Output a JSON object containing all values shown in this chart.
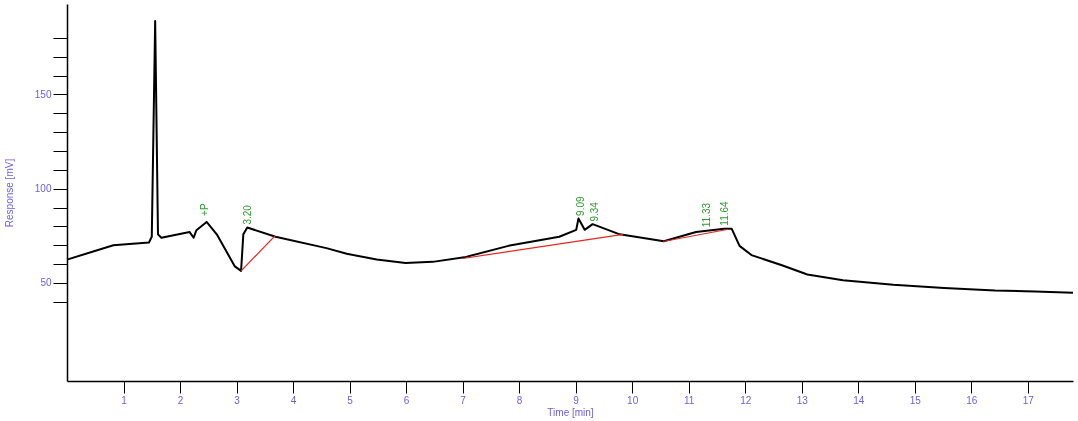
{
  "chart_data": {
    "type": "line",
    "xlabel": "Time [min]",
    "ylabel": "Response [mV]",
    "xlim": [
      0,
      17.8
    ],
    "ylim": [
      -2,
      198
    ],
    "xticks": [
      1,
      2,
      3,
      4,
      5,
      6,
      7,
      8,
      9,
      10,
      11,
      12,
      13,
      14,
      15,
      16,
      17
    ],
    "yticks": [
      {
        "value": 40,
        "label": null
      },
      50,
      {
        "value": 60,
        "label": null
      },
      {
        "value": 70,
        "label": null
      },
      {
        "value": 80,
        "label": null
      },
      {
        "value": 90,
        "label": null
      },
      100,
      {
        "value": 110,
        "label": null
      },
      {
        "value": 120,
        "label": null
      },
      {
        "value": 130,
        "label": null
      },
      {
        "value": 140,
        "label": null
      },
      150,
      {
        "value": 160,
        "label": null
      },
      {
        "value": 170,
        "label": null
      },
      {
        "value": 180,
        "label": null
      }
    ],
    "grid": false,
    "legend": false,
    "marker": "none",
    "line_style": "solid",
    "series": [
      {
        "color": "#000000",
        "x": [
          0,
          0.82,
          1.45,
          1.5,
          1.56,
          1.61,
          1.67,
          2.17,
          2.24,
          2.29,
          2.47,
          2.65,
          2.97,
          3.08,
          3.12,
          3.19,
          3.69,
          4.59,
          4.95,
          5.48,
          5.99,
          6.47,
          7.03,
          7.81,
          8.71,
          9.01,
          9.05,
          9.16,
          9.3,
          9.78,
          10.56,
          11.13,
          11.63,
          11.76,
          11.9,
          12.11,
          12.65,
          13.1,
          13.73,
          14.62,
          15.52,
          16.42,
          17.13,
          17.8
        ],
        "values": [
          62.4,
          70,
          71.5,
          74.5,
          189,
          75.8,
          74,
          77,
          74,
          78,
          82.4,
          75.8,
          58.8,
          56.4,
          75.8,
          79.4,
          74.5,
          68.5,
          65.5,
          62.4,
          60.6,
          61.2,
          63.6,
          69.7,
          74.5,
          78.2,
          84.2,
          78.2,
          81.2,
          75.8,
          72.1,
          77,
          78.8,
          78.8,
          69.7,
          64.8,
          59.4,
          54.5,
          51.5,
          49,
          47.3,
          46,
          45.5,
          44.8
        ]
      },
      {
        "color": "#e8261e",
        "x": [
          3.08,
          3.68
        ],
        "values": [
          56.4,
          75
        ]
      },
      {
        "color": "#e8261e",
        "x": [
          7.0,
          9.84
        ],
        "values": [
          63,
          75.8
        ]
      },
      {
        "color": "#e8261e",
        "x": [
          10.55,
          11.7
        ],
        "values": [
          72,
          78.5
        ]
      }
    ],
    "annotations": [
      {
        "text": "+P",
        "x": 2.45,
        "y": 84
      },
      {
        "text": "3.20",
        "x": 3.2,
        "y": 79.4
      },
      {
        "text": "9.09",
        "x": 9.09,
        "y": 84
      },
      {
        "text": "9.34",
        "x": 9.34,
        "y": 81
      },
      {
        "text": "11.33",
        "x": 11.33,
        "y": 78
      },
      {
        "text": "11.64",
        "x": 11.64,
        "y": 78.8
      }
    ]
  }
}
